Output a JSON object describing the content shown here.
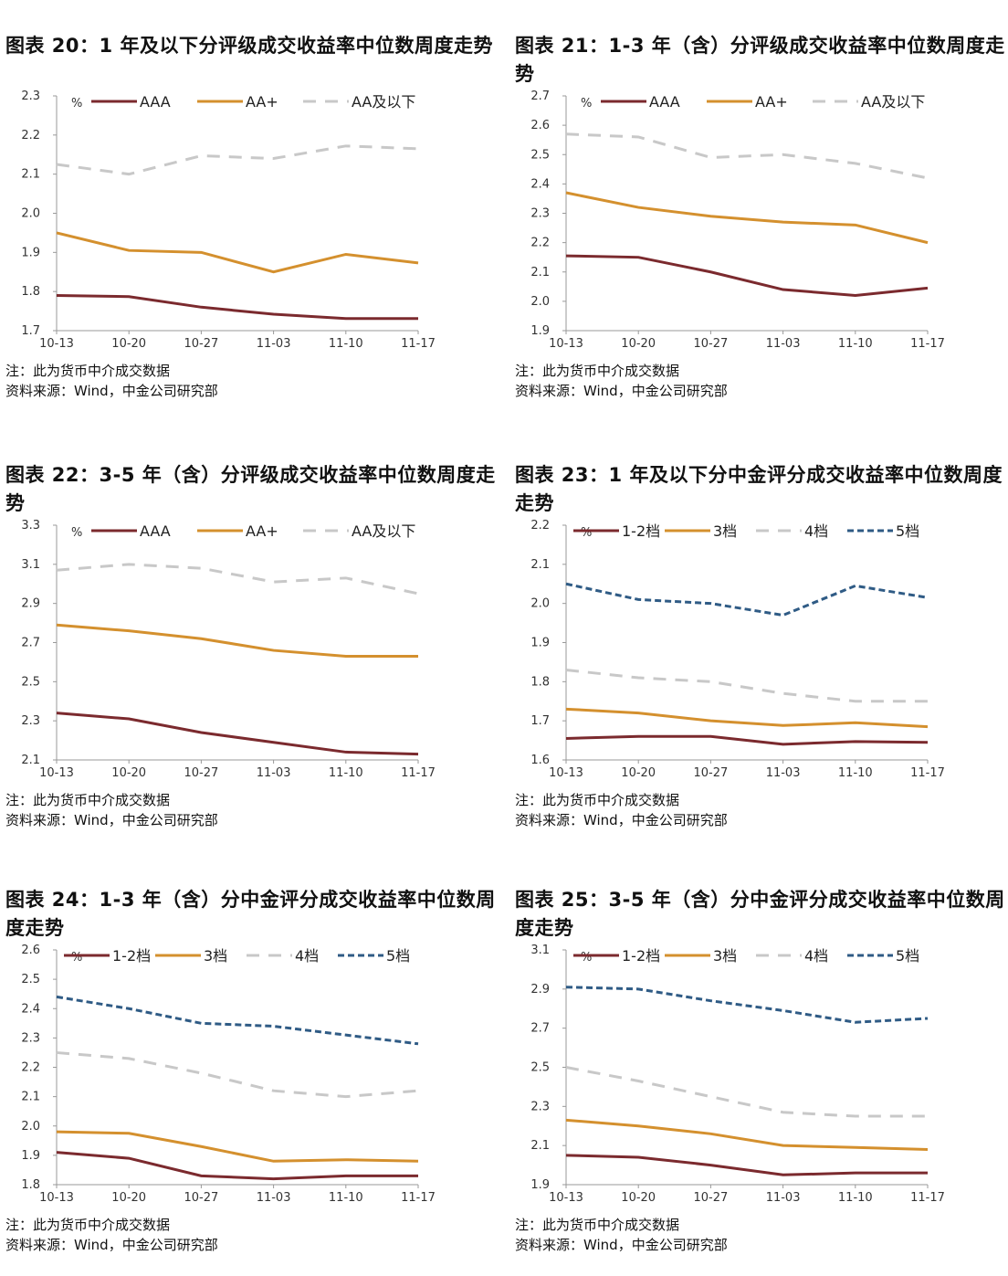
{
  "notes": {
    "note": "注：此为货币中介成交数据",
    "source": "资料来源：Wind，中金公司研究部"
  },
  "colors": {
    "AAA": "#7b2a2e",
    "AA+": "#d4902e",
    "AA及以下": "#c8c8c8",
    "1-2档": "#7b2a2e",
    "3档": "#d4902e",
    "4档": "#c8c8c8",
    "5档": "#2f5b85"
  },
  "chart_data": [
    {
      "type": "line",
      "title": "图表 20：1 年及以下分评级成交收益率中位数周度走势",
      "unit": "%",
      "categories": [
        "10-13",
        "10-20",
        "10-27",
        "11-03",
        "11-10",
        "11-17"
      ],
      "ylim": [
        1.7,
        2.3
      ],
      "yticks": [
        "1.7",
        "1.8",
        "1.9",
        "2.0",
        "2.1",
        "2.2",
        "2.3"
      ],
      "legend": "top",
      "series": [
        {
          "name": "AAA",
          "values": [
            1.79,
            1.787,
            1.76,
            1.742,
            1.731,
            1.731
          ]
        },
        {
          "name": "AA+",
          "values": [
            1.95,
            1.905,
            1.9,
            1.85,
            1.895,
            1.873
          ]
        },
        {
          "name": "AA及以下",
          "values": [
            2.125,
            2.1,
            2.147,
            2.14,
            2.172,
            2.165
          ]
        }
      ]
    },
    {
      "type": "line",
      "title": "图表 21：1-3 年（含）分评级成交收益率中位数周度走势",
      "unit": "%",
      "categories": [
        "10-13",
        "10-20",
        "10-27",
        "11-03",
        "11-10",
        "11-17"
      ],
      "ylim": [
        1.9,
        2.7
      ],
      "yticks": [
        "1.9",
        "2.0",
        "2.1",
        "2.2",
        "2.3",
        "2.4",
        "2.5",
        "2.6",
        "2.7"
      ],
      "legend": "top",
      "series": [
        {
          "name": "AAA",
          "values": [
            2.155,
            2.15,
            2.1,
            2.04,
            2.02,
            2.045
          ]
        },
        {
          "name": "AA+",
          "values": [
            2.37,
            2.32,
            2.29,
            2.27,
            2.26,
            2.2
          ]
        },
        {
          "name": "AA及以下",
          "values": [
            2.57,
            2.56,
            2.49,
            2.5,
            2.47,
            2.42
          ]
        }
      ]
    },
    {
      "type": "line",
      "title": "图表 22：3-5 年（含）分评级成交收益率中位数周度走势",
      "unit": "%",
      "categories": [
        "10-13",
        "10-20",
        "10-27",
        "11-03",
        "11-10",
        "11-17"
      ],
      "ylim": [
        2.1,
        3.3
      ],
      "yticks": [
        "2.1",
        "2.3",
        "2.5",
        "2.7",
        "2.9",
        "3.1",
        "3.3"
      ],
      "legend": "top",
      "series": [
        {
          "name": "AAA",
          "values": [
            2.34,
            2.31,
            2.24,
            2.19,
            2.14,
            2.13
          ]
        },
        {
          "name": "AA+",
          "values": [
            2.79,
            2.76,
            2.72,
            2.66,
            2.63,
            2.63
          ]
        },
        {
          "name": "AA及以下",
          "values": [
            3.07,
            3.1,
            3.08,
            3.01,
            3.03,
            2.95
          ]
        }
      ]
    },
    {
      "type": "line",
      "title": "图表 23：1 年及以下分中金评分成交收益率中位数周度走势",
      "unit": "%",
      "categories": [
        "10-13",
        "10-20",
        "10-27",
        "11-03",
        "11-10",
        "11-17"
      ],
      "ylim": [
        1.6,
        2.2
      ],
      "yticks": [
        "1.6",
        "1.7",
        "1.8",
        "1.9",
        "2.0",
        "2.1",
        "2.2"
      ],
      "legend": "top",
      "series": [
        {
          "name": "1-2档",
          "values": [
            1.655,
            1.66,
            1.66,
            1.64,
            1.647,
            1.645
          ]
        },
        {
          "name": "3档",
          "values": [
            1.73,
            1.72,
            1.7,
            1.688,
            1.695,
            1.685
          ]
        },
        {
          "name": "4档",
          "values": [
            1.83,
            1.81,
            1.8,
            1.77,
            1.75,
            1.75
          ]
        },
        {
          "name": "5档",
          "values": [
            2.05,
            2.01,
            2.0,
            1.97,
            2.045,
            2.015
          ]
        }
      ]
    },
    {
      "type": "line",
      "title": "图表 24：1-3 年（含）分中金评分成交收益率中位数周度走势",
      "unit": "%",
      "categories": [
        "10-13",
        "10-20",
        "10-27",
        "11-03",
        "11-10",
        "11-17"
      ],
      "ylim": [
        1.8,
        2.6
      ],
      "yticks": [
        "1.8",
        "1.9",
        "2.0",
        "2.1",
        "2.2",
        "2.3",
        "2.4",
        "2.5",
        "2.6"
      ],
      "legend": "top",
      "series": [
        {
          "name": "1-2档",
          "values": [
            1.91,
            1.89,
            1.83,
            1.82,
            1.83,
            1.83
          ]
        },
        {
          "name": "3档",
          "values": [
            1.98,
            1.975,
            1.93,
            1.88,
            1.885,
            1.88
          ]
        },
        {
          "name": "4档",
          "values": [
            2.25,
            2.23,
            2.18,
            2.12,
            2.1,
            2.12
          ]
        },
        {
          "name": "5档",
          "values": [
            2.44,
            2.4,
            2.35,
            2.34,
            2.31,
            2.28
          ]
        }
      ]
    },
    {
      "type": "line",
      "title": "图表 25：3-5 年（含）分中金评分成交收益率中位数周度走势",
      "unit": "%",
      "categories": [
        "10-13",
        "10-20",
        "10-27",
        "11-03",
        "11-10",
        "11-17"
      ],
      "ylim": [
        1.9,
        3.1
      ],
      "yticks": [
        "1.9",
        "2.1",
        "2.3",
        "2.5",
        "2.7",
        "2.9",
        "3.1"
      ],
      "legend": "top",
      "series": [
        {
          "name": "1-2档",
          "values": [
            2.05,
            2.04,
            2.0,
            1.95,
            1.96,
            1.96
          ]
        },
        {
          "name": "3档",
          "values": [
            2.23,
            2.2,
            2.16,
            2.1,
            2.09,
            2.08
          ]
        },
        {
          "name": "4档",
          "values": [
            2.5,
            2.43,
            2.35,
            2.27,
            2.25,
            2.25
          ]
        },
        {
          "name": "5档",
          "values": [
            2.91,
            2.9,
            2.84,
            2.79,
            2.73,
            2.75
          ]
        }
      ]
    }
  ]
}
